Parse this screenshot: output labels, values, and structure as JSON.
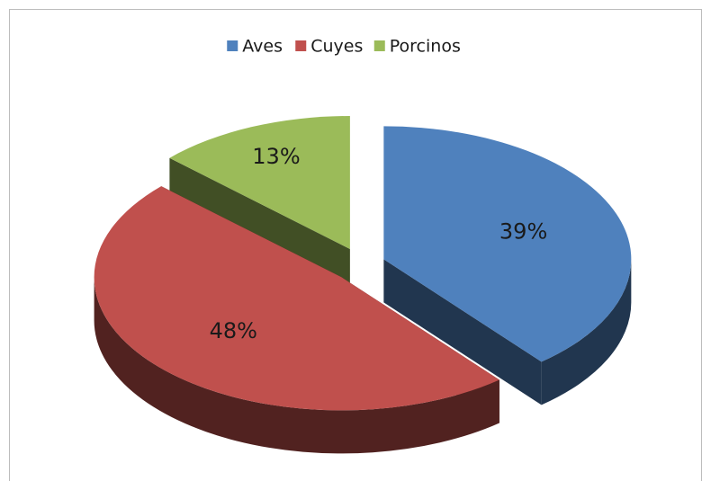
{
  "chart_data": {
    "type": "pie",
    "categories": [
      "Aves",
      "Cuyes",
      "Porcinos"
    ],
    "values": [
      39,
      48,
      13
    ],
    "value_labels": [
      "39%",
      "48%",
      "13%"
    ],
    "colors": [
      "#4f81bd",
      "#c0504d",
      "#9bbb59"
    ],
    "legend": "top"
  }
}
